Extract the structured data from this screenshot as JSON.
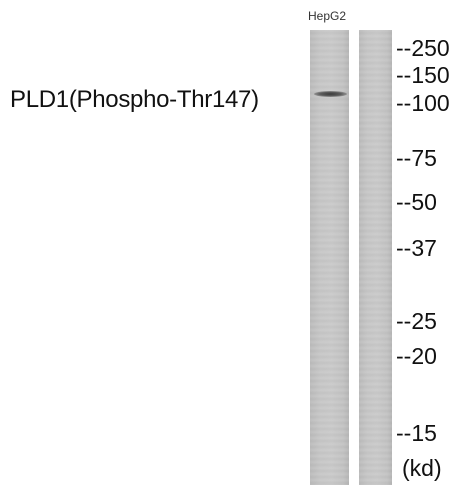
{
  "lane_labels": [
    "HepG2"
  ],
  "protein": "PLD1(Phospho-Thr147)",
  "markers": [
    "--250",
    "--150",
    "--100",
    "--75",
    "--50",
    "--37",
    "--25",
    "--20",
    "--15"
  ],
  "unit": "(kd)"
}
